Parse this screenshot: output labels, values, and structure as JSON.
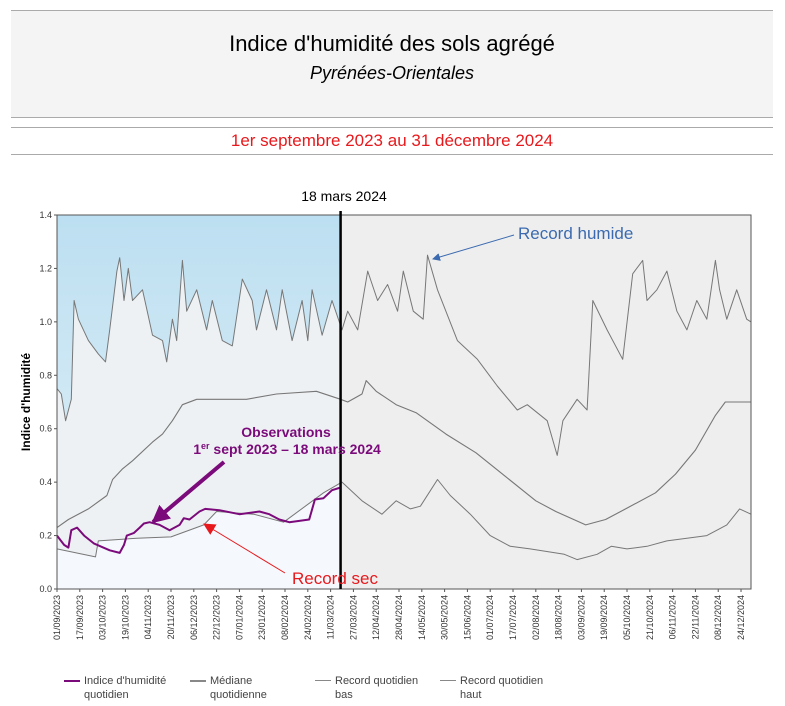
{
  "header": {
    "title": "Indice d'humidité des sols agrégé",
    "subtitle": "Pyrénées-Orientales",
    "period": "1er septembre 2023 au 31 décembre 2024"
  },
  "chart_data": {
    "type": "line",
    "ylabel": "Indice d'humidité",
    "ylim": [
      0,
      1.4
    ],
    "yticks": [
      "0.0",
      "0.2",
      "0.4",
      "0.6",
      "0.8",
      "1.0",
      "1.2",
      "1.4"
    ],
    "xlim": [
      "2023-09-01",
      "2024-12-31"
    ],
    "xticks": [
      "01/09/2023",
      "17/09/2023",
      "03/10/2023",
      "19/10/2023",
      "04/11/2023",
      "20/11/2023",
      "06/12/2023",
      "22/12/2023",
      "07/01/2024",
      "23/01/2024",
      "08/02/2024",
      "24/02/2024",
      "11/03/2024",
      "27/03/2024",
      "12/04/2024",
      "28/04/2024",
      "14/05/2024",
      "30/05/2024",
      "15/06/2024",
      "01/07/2024",
      "17/07/2024",
      "02/08/2024",
      "18/08/2024",
      "03/09/2024",
      "19/09/2024",
      "05/10/2024",
      "21/10/2024",
      "06/11/2024",
      "22/11/2024",
      "08/12/2024",
      "24/12/2024"
    ],
    "marker_date": "2024-03-18",
    "marker_label": "18 mars 2024",
    "colors": {
      "observed": "#7b0a7b",
      "median": "#777777",
      "low": "#777777",
      "high": "#777777",
      "wet_zone": "#c2e1f2",
      "dry_zone": "#f5f8fd",
      "between": "#eef1f3",
      "future": "#eeeeee"
    },
    "series": [
      {
        "name": "Indice d'humidité quotidien",
        "key": "observed",
        "points": [
          [
            "2023-09-01",
            0.2
          ],
          [
            "2023-09-06",
            0.165
          ],
          [
            "2023-09-09",
            0.155
          ],
          [
            "2023-09-11",
            0.22
          ],
          [
            "2023-09-15",
            0.23
          ],
          [
            "2023-09-20",
            0.2
          ],
          [
            "2023-09-27",
            0.17
          ],
          [
            "2023-10-08",
            0.145
          ],
          [
            "2023-10-15",
            0.135
          ],
          [
            "2023-10-18",
            0.165
          ],
          [
            "2023-10-20",
            0.2
          ],
          [
            "2023-10-25",
            0.21
          ],
          [
            "2023-10-29",
            0.23
          ],
          [
            "2023-11-01",
            0.245
          ],
          [
            "2023-11-05",
            0.25
          ],
          [
            "2023-11-12",
            0.24
          ],
          [
            "2023-11-19",
            0.22
          ],
          [
            "2023-11-26",
            0.24
          ],
          [
            "2023-11-29",
            0.265
          ],
          [
            "2023-12-03",
            0.26
          ],
          [
            "2023-12-10",
            0.29
          ],
          [
            "2023-12-14",
            0.3
          ],
          [
            "2023-12-24",
            0.295
          ],
          [
            "2024-01-07",
            0.28
          ],
          [
            "2024-01-21",
            0.29
          ],
          [
            "2024-01-28",
            0.28
          ],
          [
            "2024-02-04",
            0.26
          ],
          [
            "2024-02-11",
            0.25
          ],
          [
            "2024-02-18",
            0.255
          ],
          [
            "2024-02-25",
            0.26
          ],
          [
            "2024-02-29",
            0.335
          ],
          [
            "2024-03-06",
            0.34
          ],
          [
            "2024-03-12",
            0.37
          ],
          [
            "2024-03-18",
            0.38
          ]
        ]
      },
      {
        "name": "Médiane quotidienne",
        "key": "median",
        "points": [
          [
            "2023-09-01",
            0.23
          ],
          [
            "2023-09-09",
            0.26
          ],
          [
            "2023-09-23",
            0.3
          ],
          [
            "2023-10-06",
            0.35
          ],
          [
            "2023-10-10",
            0.41
          ],
          [
            "2023-10-17",
            0.45
          ],
          [
            "2023-10-24",
            0.48
          ],
          [
            "2023-11-07",
            0.55
          ],
          [
            "2023-11-14",
            0.58
          ],
          [
            "2023-11-21",
            0.63
          ],
          [
            "2023-11-28",
            0.69
          ],
          [
            "2023-12-08",
            0.71
          ],
          [
            "2023-12-22",
            0.71
          ],
          [
            "2024-01-12",
            0.71
          ],
          [
            "2024-02-02",
            0.73
          ],
          [
            "2024-03-01",
            0.74
          ],
          [
            "2024-03-18",
            0.71
          ],
          [
            "2024-03-23",
            0.7
          ],
          [
            "2024-04-02",
            0.73
          ],
          [
            "2024-04-05",
            0.78
          ],
          [
            "2024-04-12",
            0.74
          ],
          [
            "2024-04-26",
            0.69
          ],
          [
            "2024-05-10",
            0.66
          ],
          [
            "2024-05-31",
            0.58
          ],
          [
            "2024-06-21",
            0.51
          ],
          [
            "2024-07-12",
            0.42
          ],
          [
            "2024-08-02",
            0.33
          ],
          [
            "2024-08-16",
            0.29
          ],
          [
            "2024-09-06",
            0.24
          ],
          [
            "2024-09-20",
            0.26
          ],
          [
            "2024-10-04",
            0.3
          ],
          [
            "2024-10-25",
            0.36
          ],
          [
            "2024-11-08",
            0.43
          ],
          [
            "2024-11-22",
            0.52
          ],
          [
            "2024-12-06",
            0.65
          ],
          [
            "2024-12-13",
            0.7
          ],
          [
            "2024-12-31",
            0.7
          ]
        ]
      },
      {
        "name": "Record quotidien bas",
        "key": "low",
        "points": [
          [
            "2023-09-01",
            0.15
          ],
          [
            "2023-09-28",
            0.12
          ],
          [
            "2023-09-30",
            0.18
          ],
          [
            "2023-10-27",
            0.19
          ],
          [
            "2023-11-20",
            0.195
          ],
          [
            "2023-12-13",
            0.24
          ],
          [
            "2023-12-22",
            0.29
          ],
          [
            "2024-01-17",
            0.28
          ],
          [
            "2024-02-07",
            0.25
          ],
          [
            "2024-03-06",
            0.36
          ],
          [
            "2024-03-19",
            0.4
          ],
          [
            "2024-04-02",
            0.33
          ],
          [
            "2024-04-16",
            0.28
          ],
          [
            "2024-04-26",
            0.33
          ],
          [
            "2024-05-06",
            0.3
          ],
          [
            "2024-05-13",
            0.31
          ],
          [
            "2024-05-25",
            0.41
          ],
          [
            "2024-06-03",
            0.35
          ],
          [
            "2024-06-17",
            0.28
          ],
          [
            "2024-07-01",
            0.2
          ],
          [
            "2024-07-15",
            0.16
          ],
          [
            "2024-07-29",
            0.15
          ],
          [
            "2024-08-22",
            0.13
          ],
          [
            "2024-08-31",
            0.11
          ],
          [
            "2024-09-14",
            0.13
          ],
          [
            "2024-09-24",
            0.16
          ],
          [
            "2024-10-05",
            0.15
          ],
          [
            "2024-10-19",
            0.16
          ],
          [
            "2024-11-02",
            0.18
          ],
          [
            "2024-11-16",
            0.19
          ],
          [
            "2024-11-30",
            0.2
          ],
          [
            "2024-12-14",
            0.24
          ],
          [
            "2024-12-23",
            0.3
          ],
          [
            "2024-12-31",
            0.28
          ]
        ]
      },
      {
        "name": "Record quotidien haut",
        "key": "high",
        "points": [
          [
            "2023-09-01",
            0.75
          ],
          [
            "2023-09-04",
            0.73
          ],
          [
            "2023-09-07",
            0.63
          ],
          [
            "2023-09-11",
            0.71
          ],
          [
            "2023-09-13",
            1.08
          ],
          [
            "2023-09-16",
            1.01
          ],
          [
            "2023-09-23",
            0.93
          ],
          [
            "2023-09-30",
            0.88
          ],
          [
            "2023-10-05",
            0.85
          ],
          [
            "2023-10-08",
            0.97
          ],
          [
            "2023-10-13",
            1.19
          ],
          [
            "2023-10-15",
            1.24
          ],
          [
            "2023-10-18",
            1.08
          ],
          [
            "2023-10-21",
            1.2
          ],
          [
            "2023-10-24",
            1.08
          ],
          [
            "2023-10-31",
            1.12
          ],
          [
            "2023-11-07",
            0.95
          ],
          [
            "2023-11-14",
            0.93
          ],
          [
            "2023-11-17",
            0.85
          ],
          [
            "2023-11-21",
            1.01
          ],
          [
            "2023-11-24",
            0.93
          ],
          [
            "2023-11-28",
            1.23
          ],
          [
            "2023-12-01",
            1.04
          ],
          [
            "2023-12-08",
            1.12
          ],
          [
            "2023-12-15",
            0.97
          ],
          [
            "2023-12-19",
            1.08
          ],
          [
            "2023-12-26",
            0.93
          ],
          [
            "2024-01-02",
            0.91
          ],
          [
            "2024-01-09",
            1.16
          ],
          [
            "2024-01-16",
            1.08
          ],
          [
            "2024-01-19",
            0.97
          ],
          [
            "2024-01-26",
            1.12
          ],
          [
            "2024-02-02",
            0.97
          ],
          [
            "2024-02-06",
            1.12
          ],
          [
            "2024-02-13",
            0.93
          ],
          [
            "2024-02-20",
            1.08
          ],
          [
            "2024-02-24",
            0.93
          ],
          [
            "2024-02-27",
            1.12
          ],
          [
            "2024-03-05",
            0.95
          ],
          [
            "2024-03-12",
            1.08
          ],
          [
            "2024-03-19",
            0.97
          ],
          [
            "2024-03-23",
            1.04
          ],
          [
            "2024-03-30",
            0.97
          ],
          [
            "2024-04-06",
            1.19
          ],
          [
            "2024-04-13",
            1.08
          ],
          [
            "2024-04-20",
            1.14
          ],
          [
            "2024-04-27",
            1.04
          ],
          [
            "2024-05-01",
            1.19
          ],
          [
            "2024-05-08",
            1.04
          ],
          [
            "2024-05-15",
            1.01
          ],
          [
            "2024-05-18",
            1.25
          ],
          [
            "2024-05-25",
            1.12
          ],
          [
            "2024-06-08",
            0.93
          ],
          [
            "2024-06-22",
            0.86
          ],
          [
            "2024-07-06",
            0.76
          ],
          [
            "2024-07-20",
            0.67
          ],
          [
            "2024-07-27",
            0.69
          ],
          [
            "2024-08-10",
            0.63
          ],
          [
            "2024-08-17",
            0.5
          ],
          [
            "2024-08-21",
            0.63
          ],
          [
            "2024-08-31",
            0.71
          ],
          [
            "2024-09-07",
            0.67
          ],
          [
            "2024-09-11",
            1.08
          ],
          [
            "2024-09-21",
            0.97
          ],
          [
            "2024-10-02",
            0.86
          ],
          [
            "2024-10-09",
            1.18
          ],
          [
            "2024-10-16",
            1.23
          ],
          [
            "2024-10-19",
            1.08
          ],
          [
            "2024-10-26",
            1.12
          ],
          [
            "2024-11-02",
            1.19
          ],
          [
            "2024-11-09",
            1.04
          ],
          [
            "2024-11-16",
            0.97
          ],
          [
            "2024-11-23",
            1.08
          ],
          [
            "2024-11-30",
            1.01
          ],
          [
            "2024-12-06",
            1.23
          ],
          [
            "2024-12-09",
            1.12
          ],
          [
            "2024-12-14",
            1.01
          ],
          [
            "2024-12-21",
            1.12
          ],
          [
            "2024-12-28",
            1.01
          ],
          [
            "2024-12-31",
            1.0
          ]
        ]
      }
    ],
    "annotations": {
      "wet_record": "Record humide",
      "dry_record": "Record sec",
      "observations_line1": "Observations",
      "observations_line2_prefix": "1",
      "observations_line2_sup": "er",
      "observations_line2_rest": " sept 2023 – 18 mars 2024"
    },
    "legend": [
      {
        "line1": "Indice d'humidité",
        "line2": "quotidien",
        "color": "#7b0a7b"
      },
      {
        "line1": "Médiane",
        "line2": "quotidienne",
        "color": "#888888"
      },
      {
        "line1": "Record quotidien",
        "line2": "bas",
        "color": "#888888"
      },
      {
        "line1": "Record quotidien",
        "line2": "haut",
        "color": "#888888"
      }
    ]
  }
}
